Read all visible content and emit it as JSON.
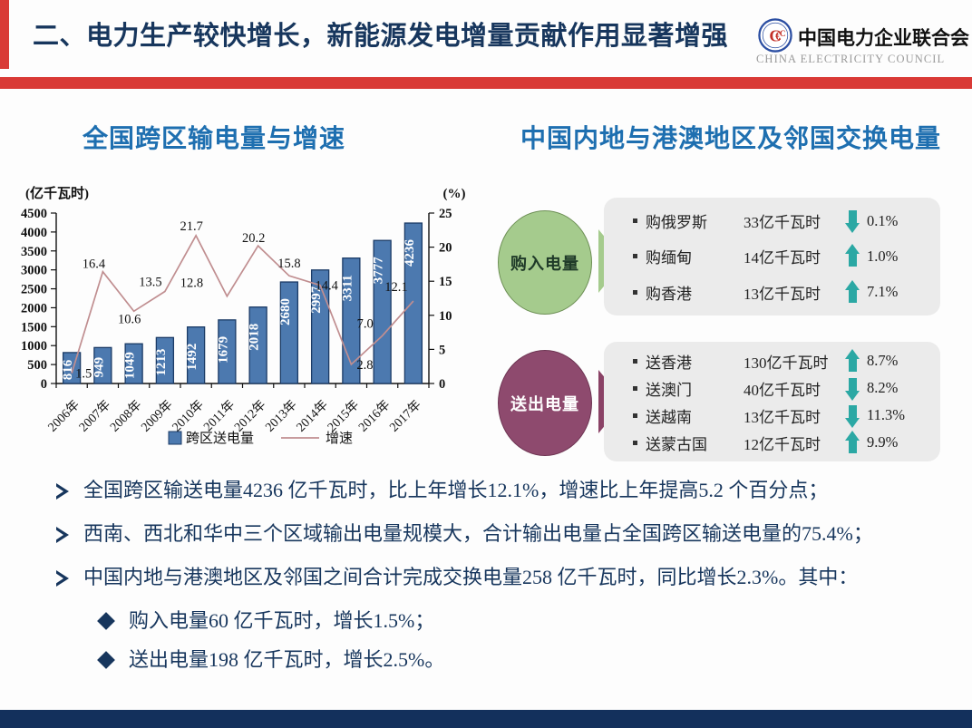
{
  "header": {
    "title": "二、电力生产较快增长，新能源发电增量贡献作用显著增强",
    "logo_cn": "中国电力企业联合会",
    "logo_en": "CHINA ELECTRICITY COUNCIL"
  },
  "colors": {
    "accent_red": "#D93A36",
    "title_navy": "#17365D",
    "section_blue": "#1E6FB0",
    "bar_fill": "#4C79AF",
    "bar_stroke": "#1B3B66",
    "growth_line": "#C08E90",
    "arrow_teal": "#2BA8A4",
    "buy_green": "#A5CB8D",
    "send_maroon": "#8E4A6E",
    "box_gray": "#EBEBEB",
    "footer_navy": "#13305C"
  },
  "left_section": {
    "title": "全国跨区输电量与增速"
  },
  "chart_data": {
    "type": "bar",
    "title": "全国跨区输电量与增速",
    "categories": [
      "2006年",
      "2007年",
      "2008年",
      "2009年",
      "2010年",
      "2011年",
      "2012年",
      "2013年",
      "2014年",
      "2015年",
      "2016年",
      "2017年"
    ],
    "series": [
      {
        "name": "跨区送电量",
        "type": "bar",
        "axis": "left",
        "color": "#4C79AF",
        "values": [
          816,
          949,
          1049,
          1213,
          1492,
          1679,
          2018,
          2680,
          2997,
          3311,
          3777,
          4236
        ]
      },
      {
        "name": "增速",
        "type": "line",
        "axis": "right",
        "color": "#C08E90",
        "values": [
          1.5,
          16.4,
          10.6,
          13.5,
          21.7,
          12.8,
          20.2,
          15.8,
          14.4,
          2.8,
          7.0,
          12.1
        ]
      }
    ],
    "left_axis": {
      "label": "(亿千瓦时)",
      "min": 0,
      "max": 4500,
      "step": 500
    },
    "right_axis": {
      "label": "(%)",
      "min": 0,
      "max": 25,
      "step": 5
    },
    "grid": false,
    "legend_position": "bottom"
  },
  "right_panel": {
    "title": "中国内地与港澳地区及邻国交换电量",
    "groups": [
      {
        "circle_label": "购入电量",
        "rows": [
          {
            "label": "购俄罗斯",
            "value": "33亿千瓦时",
            "dir": "down",
            "pct": "0.1%"
          },
          {
            "label": "购缅甸",
            "value": "14亿千瓦时",
            "dir": "up",
            "pct": "1.0%"
          },
          {
            "label": "购香港",
            "value": "13亿千瓦时",
            "dir": "up",
            "pct": "7.1%"
          }
        ]
      },
      {
        "circle_label": "送出电量",
        "rows": [
          {
            "label": "送香港",
            "value": "130亿千瓦时",
            "dir": "up",
            "pct": "8.7%"
          },
          {
            "label": "送澳门",
            "value": "40亿千瓦时",
            "dir": "down",
            "pct": "8.2%"
          },
          {
            "label": "送越南",
            "value": "13亿千瓦时",
            "dir": "down",
            "pct": "11.3%"
          },
          {
            "label": "送蒙古国",
            "value": "12亿千瓦时",
            "dir": "up",
            "pct": "9.9%"
          }
        ]
      }
    ]
  },
  "bullets": {
    "items": [
      "全国跨区输送电量4236 亿千瓦时，比上年增长12.1%，增速比上年提高5.2 个百分点；",
      "西南、西北和华中三个区域输出电量规模大，合计输出电量占全国跨区输送电量的75.4%；",
      "中国内地与港澳地区及邻国之间合计完成交换电量258 亿千瓦时，同比增长2.3%。其中："
    ],
    "sub_items": [
      "购入电量60 亿千瓦时，增长1.5%；",
      "送出电量198 亿千瓦时，增长2.5%。"
    ]
  }
}
